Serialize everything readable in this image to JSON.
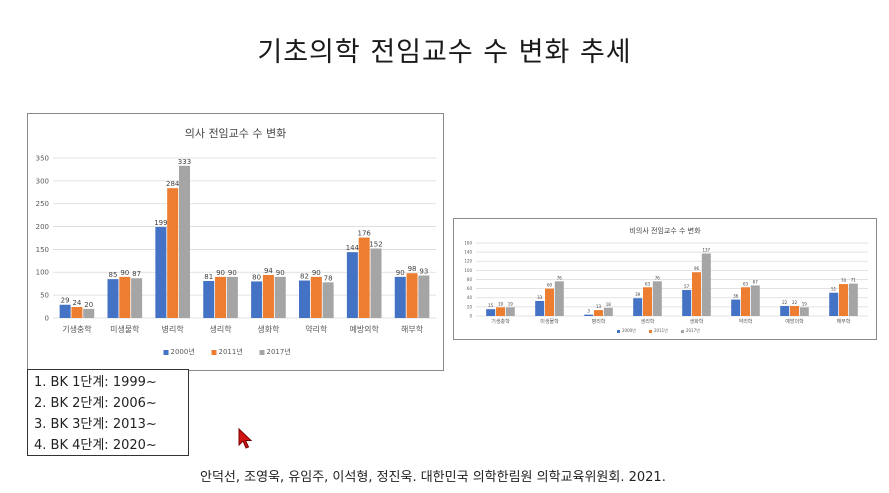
{
  "slide": {
    "title": "기초의학 전임교수 수 변화 추세",
    "bk_stages": [
      "1. BK 1단계: 1999~",
      "2. BK 2단계: 2006~",
      "3. BK 3단계: 2013~",
      "4. BK 4단계: 2020~"
    ],
    "citation": "안덕선, 조영욱, 유임주, 이석형, 정진욱. 대한민국 의학한림원 의학교육위원회. 2021."
  },
  "colors": {
    "series": [
      "#4472c4",
      "#ed7d31",
      "#a5a5a5"
    ]
  },
  "chart_data": [
    {
      "type": "bar",
      "title": "의사 전임교수 수 변화",
      "categories": [
        "기생충학",
        "미생물학",
        "병리학",
        "생리학",
        "생화학",
        "약리학",
        "예방의학",
        "해부학"
      ],
      "series": [
        {
          "name": "2000년",
          "values": [
            29,
            85,
            199,
            81,
            80,
            82,
            144,
            90
          ]
        },
        {
          "name": "2011년",
          "values": [
            24,
            90,
            284,
            90,
            94,
            90,
            176,
            98
          ]
        },
        {
          "name": "2017년",
          "values": [
            20,
            87,
            333,
            90,
            90,
            78,
            152,
            93
          ]
        }
      ],
      "yticks": [
        0,
        50,
        100,
        150,
        200,
        250,
        300,
        350
      ],
      "ylim": [
        0,
        350
      ],
      "grid": true,
      "legend": "bottom"
    },
    {
      "type": "bar",
      "title": "비의사 전임교수 수 변화",
      "categories": [
        "기생충학",
        "미생물학",
        "병리학",
        "생리학",
        "생화학",
        "약리학",
        "예방의학",
        "해부학"
      ],
      "series": [
        {
          "name": "2000년",
          "values": [
            15,
            33,
            3,
            39,
            57,
            36,
            22,
            51
          ]
        },
        {
          "name": "2011년",
          "values": [
            19,
            60,
            13,
            63,
            96,
            63,
            22,
            70
          ]
        },
        {
          "name": "2017년",
          "values": [
            19,
            76,
            18,
            76,
            137,
            67,
            19,
            71
          ]
        }
      ],
      "yticks": [
        0,
        20,
        40,
        60,
        80,
        100,
        120,
        140,
        160
      ],
      "ylim": [
        0,
        160
      ],
      "grid": true,
      "legend": "bottom"
    }
  ]
}
